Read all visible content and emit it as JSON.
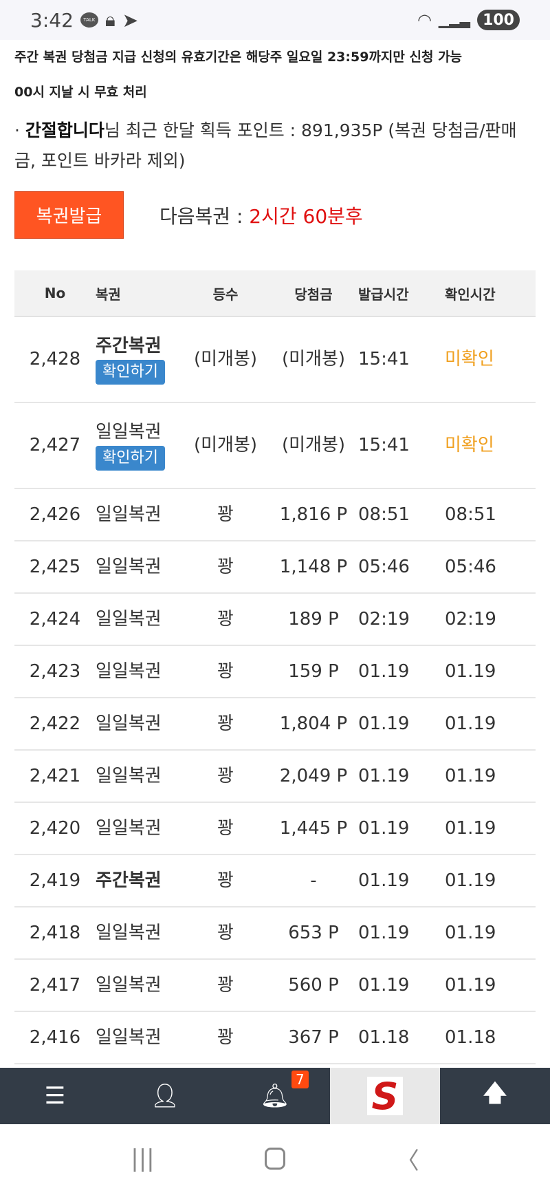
{
  "status_bar": {
    "time": "3:42",
    "talk_label": "TALK",
    "battery": "100"
  },
  "notice": {
    "line1": "주간 복권 당첨금 지급 신청의 유효기간은 해당주 일요일 23:59까지만 신청 가능",
    "line2": "00시 지날 시 무효 처리"
  },
  "points": {
    "bullet": "·",
    "username": "간절합니다",
    "text": "님 최근 한달 획득 포인트 : 891,935P (복권 당첨금/판매금, 포인트 바카라 제외)"
  },
  "issue_button": "복권발급",
  "next": {
    "label": "다음복권 : ",
    "value": "2시간 60분후"
  },
  "table": {
    "headers": [
      "No",
      "복권",
      "등수",
      "당첨금",
      "발급시간",
      "확인시간"
    ],
    "check_button": "확인하기",
    "rows": [
      {
        "no": "2,428",
        "type": "주간복권",
        "rank": "(미개봉)",
        "prize": "(미개봉)",
        "issued": "15:41",
        "checked": "미확인"
      },
      {
        "no": "2,427",
        "type": "일일복권",
        "rank": "(미개봉)",
        "prize": "(미개봉)",
        "issued": "15:41",
        "checked": "미확인"
      },
      {
        "no": "2,426",
        "type": "일일복권",
        "rank": "꽝",
        "prize": "1,816 P",
        "issued": "08:51",
        "checked": "08:51"
      },
      {
        "no": "2,425",
        "type": "일일복권",
        "rank": "꽝",
        "prize": "1,148 P",
        "issued": "05:46",
        "checked": "05:46"
      },
      {
        "no": "2,424",
        "type": "일일복권",
        "rank": "꽝",
        "prize": "189 P",
        "issued": "02:19",
        "checked": "02:19"
      },
      {
        "no": "2,423",
        "type": "일일복권",
        "rank": "꽝",
        "prize": "159 P",
        "issued": "01.19",
        "checked": "01.19"
      },
      {
        "no": "2,422",
        "type": "일일복권",
        "rank": "꽝",
        "prize": "1,804 P",
        "issued": "01.19",
        "checked": "01.19"
      },
      {
        "no": "2,421",
        "type": "일일복권",
        "rank": "꽝",
        "prize": "2,049 P",
        "issued": "01.19",
        "checked": "01.19"
      },
      {
        "no": "2,420",
        "type": "일일복권",
        "rank": "꽝",
        "prize": "1,445 P",
        "issued": "01.19",
        "checked": "01.19"
      },
      {
        "no": "2,419",
        "type": "주간복권",
        "rank": "꽝",
        "prize": "-",
        "issued": "01.19",
        "checked": "01.19"
      },
      {
        "no": "2,418",
        "type": "일일복권",
        "rank": "꽝",
        "prize": "653 P",
        "issued": "01.19",
        "checked": "01.19"
      },
      {
        "no": "2,417",
        "type": "일일복권",
        "rank": "꽝",
        "prize": "560 P",
        "issued": "01.19",
        "checked": "01.19"
      },
      {
        "no": "2,416",
        "type": "일일복권",
        "rank": "꽝",
        "prize": "367 P",
        "issued": "01.18",
        "checked": "01.18"
      }
    ]
  },
  "bottom_nav": {
    "notification_count": "7",
    "logo_letter": "S",
    "icons": [
      "menu-icon",
      "user-icon",
      "bell-icon",
      "site-logo",
      "arrow-up-icon"
    ]
  },
  "colors": {
    "issue_button": "#ff5522",
    "next_value": "#e01010",
    "check_button": "#3a87cc",
    "unchecked": "#f0a020",
    "nav_bg": "#333c47"
  }
}
